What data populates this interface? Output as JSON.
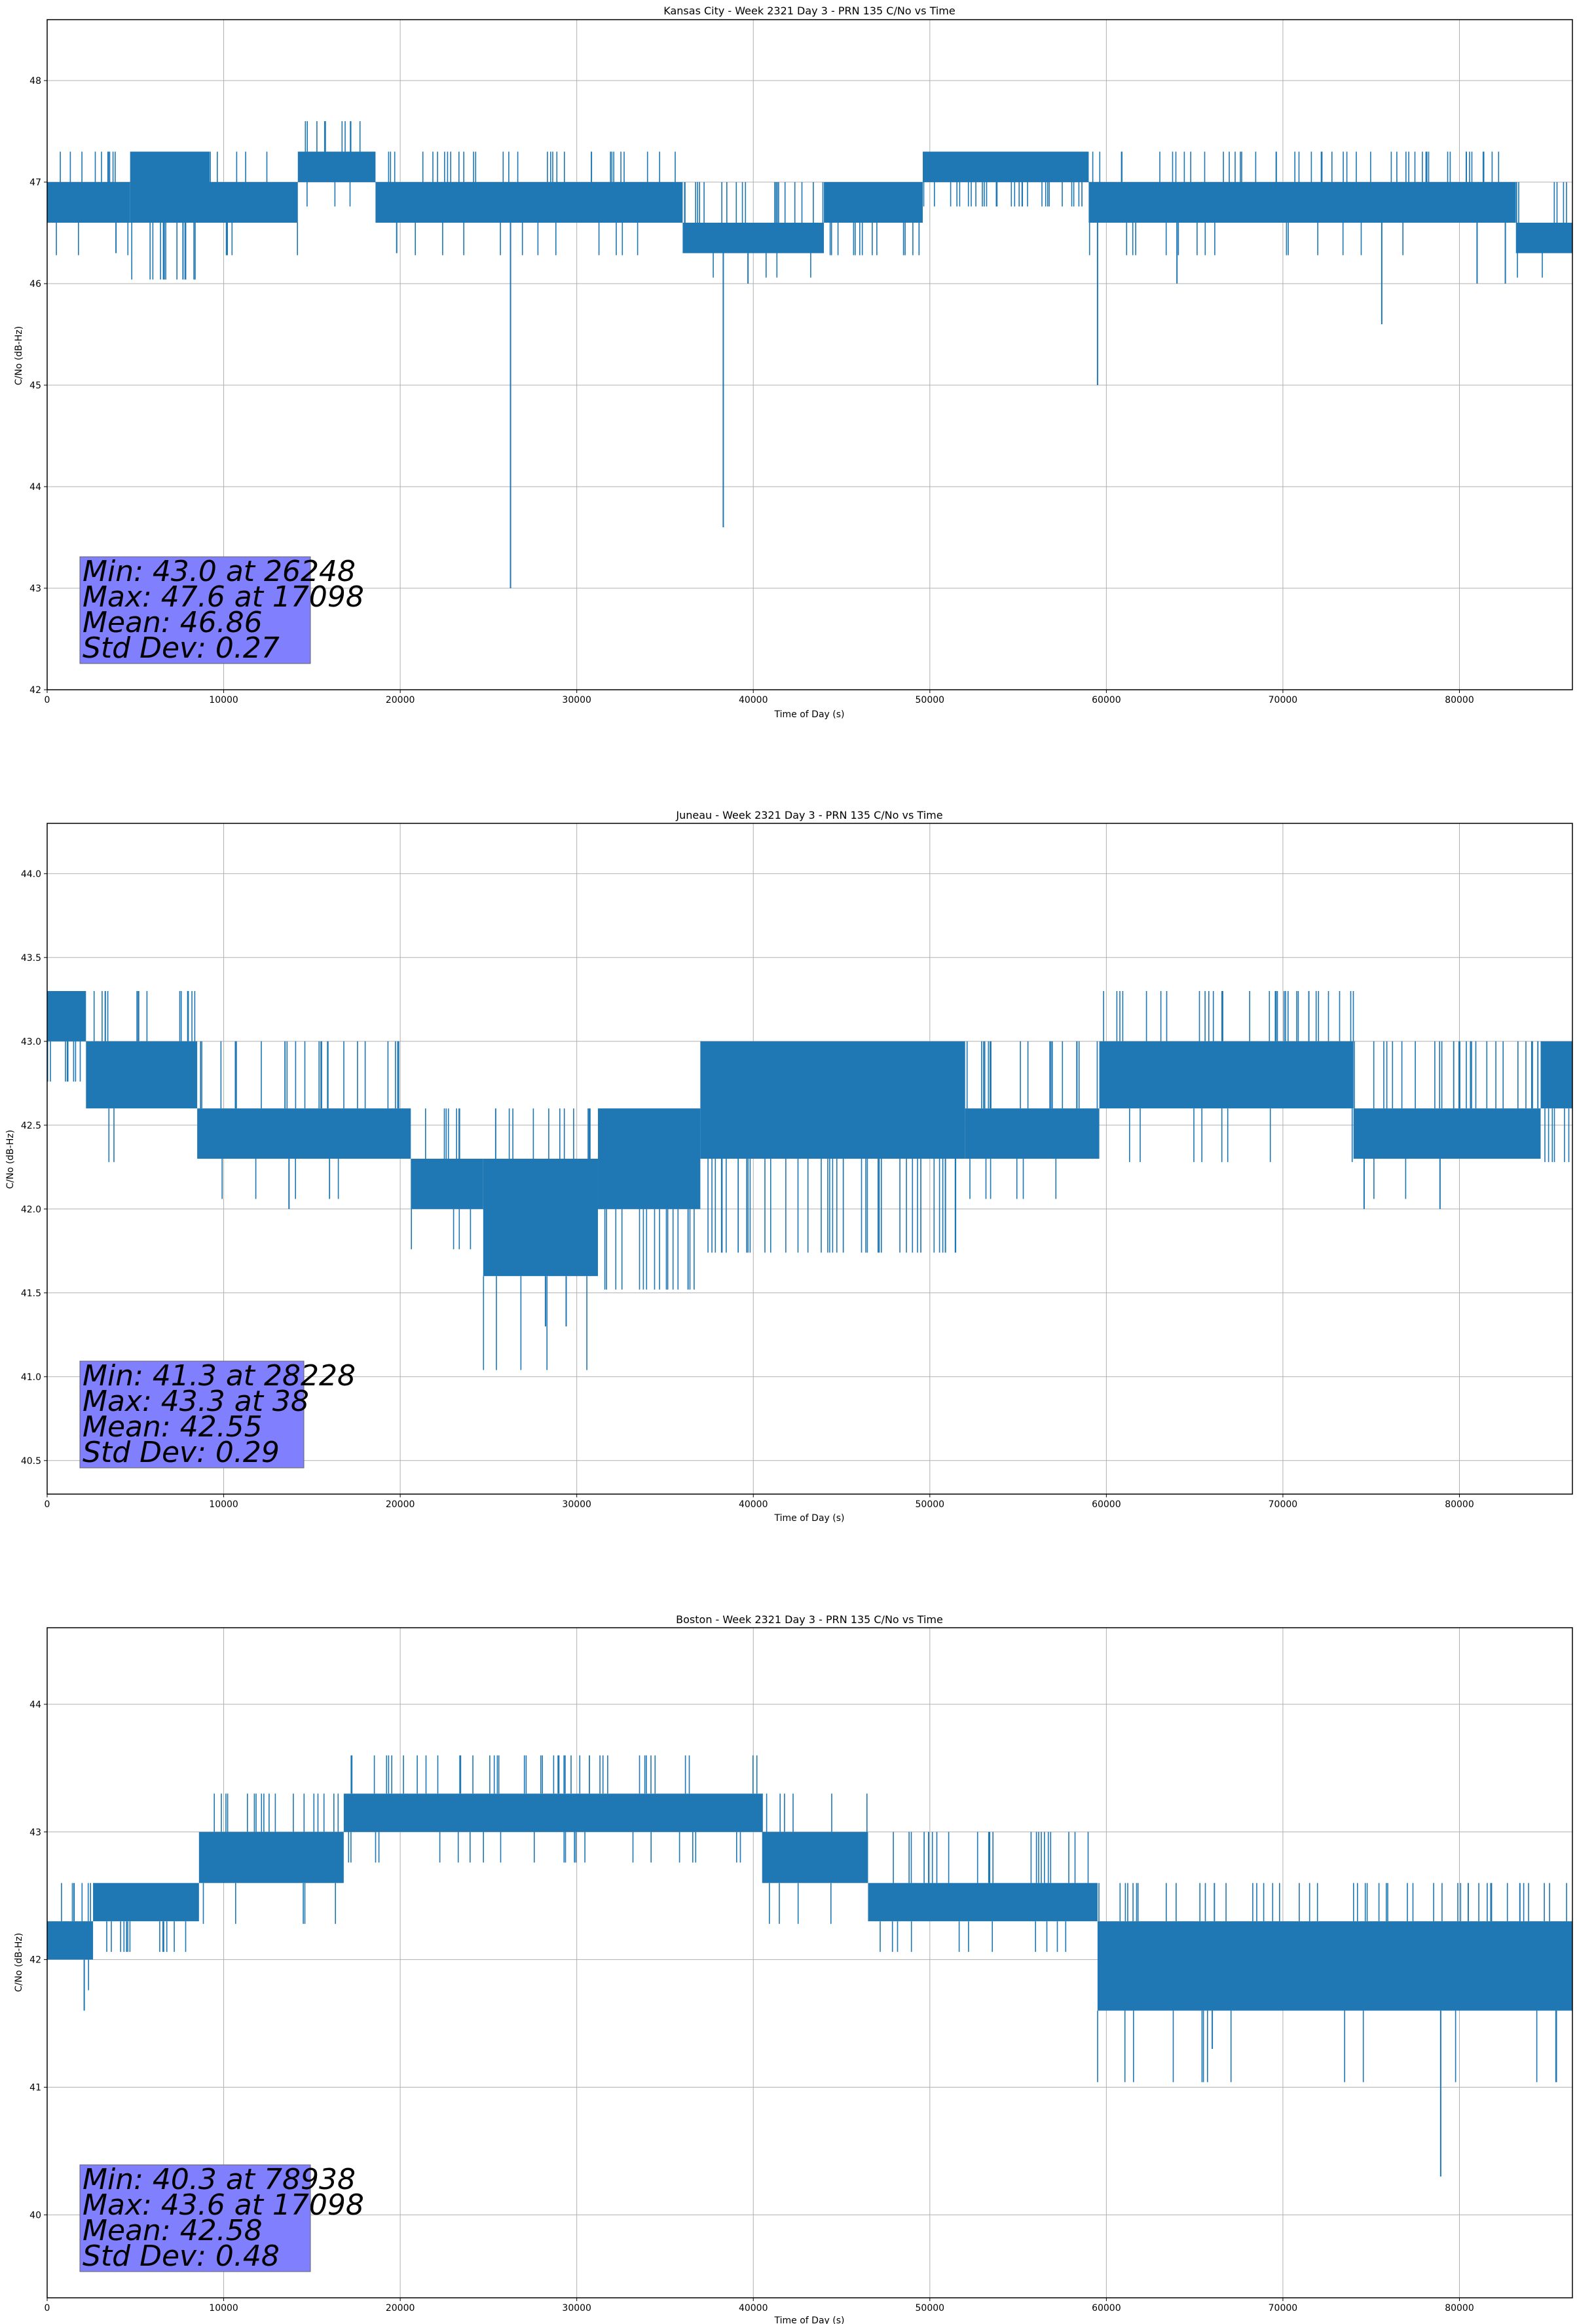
{
  "figure": {
    "background": "#ffffff",
    "line_color": "#1f77b4",
    "stats_box_color": "#8080ff"
  },
  "chart_data": [
    {
      "type": "line",
      "title": "Kansas City - Week 2321 Day 3 - PRN 135 C/No vs Time",
      "xlabel": "Time of Day (s)",
      "ylabel": "C/No (dB-Hz)",
      "xlim": [
        0,
        86400
      ],
      "ylim": [
        42,
        48.6
      ],
      "xticks": [
        0,
        10000,
        20000,
        30000,
        40000,
        50000,
        60000,
        70000,
        80000
      ],
      "xtick_labels": [
        "0",
        "10000",
        "20000",
        "30000",
        "40000",
        "50000",
        "60000",
        "70000",
        "80000"
      ],
      "yticks": [
        42,
        43,
        44,
        45,
        46,
        47,
        48
      ],
      "ytick_labels": [
        "42",
        "43",
        "44",
        "45",
        "46",
        "47",
        "48"
      ],
      "grid": true,
      "segments": [
        {
          "x0": 0,
          "x1": 4700,
          "lo": 46.6,
          "hi": 47.0,
          "spike_hi": 47.3
        },
        {
          "x0": 4700,
          "x1": 9200,
          "lo": 46.6,
          "hi": 47.3,
          "spike_hi": 47.3
        },
        {
          "x0": 9200,
          "x1": 14200,
          "lo": 46.6,
          "hi": 47.0,
          "spike_hi": 47.3
        },
        {
          "x0": 14200,
          "x1": 18600,
          "lo": 47.0,
          "hi": 47.3,
          "spike_hi": 47.6
        },
        {
          "x0": 18600,
          "x1": 36000,
          "lo": 46.6,
          "hi": 47.0,
          "spike_hi": 47.3
        },
        {
          "x0": 36000,
          "x1": 44000,
          "lo": 46.3,
          "hi": 46.6,
          "spike_hi": 47.0
        },
        {
          "x0": 44000,
          "x1": 49600,
          "lo": 46.6,
          "hi": 47.0,
          "spike_hi": 47.0
        },
        {
          "x0": 49600,
          "x1": 59000,
          "lo": 47.0,
          "hi": 47.3,
          "spike_hi": 47.3
        },
        {
          "x0": 59000,
          "x1": 83200,
          "lo": 46.6,
          "hi": 47.0,
          "spike_hi": 47.3
        },
        {
          "x0": 83200,
          "x1": 86400,
          "lo": 46.3,
          "hi": 46.6,
          "spike_hi": 47.0
        }
      ],
      "dips": [
        [
          3900,
          46.3
        ],
        [
          19800,
          46.3
        ],
        [
          26248,
          43.0
        ],
        [
          38300,
          43.6
        ],
        [
          39700,
          46.0
        ],
        [
          59500,
          45.0
        ],
        [
          64000,
          46.0
        ],
        [
          75600,
          45.6
        ],
        [
          81000,
          46.0
        ],
        [
          82600,
          46.0
        ]
      ],
      "stats": [
        "Min: 43.0 at 26248",
        "Max: 47.6 at 17098",
        "Mean: 46.86",
        "Std Dev: 0.27"
      ]
    },
    {
      "type": "line",
      "title": "Juneau - Week 2321 Day 3 - PRN 135 C/No vs Time",
      "xlabel": "Time of Day (s)",
      "ylabel": "C/No (dB-Hz)",
      "xlim": [
        0,
        86400
      ],
      "ylim": [
        40.3,
        44.3
      ],
      "xticks": [
        0,
        10000,
        20000,
        30000,
        40000,
        50000,
        60000,
        70000,
        80000
      ],
      "xtick_labels": [
        "0",
        "10000",
        "20000",
        "30000",
        "40000",
        "50000",
        "60000",
        "70000",
        "80000"
      ],
      "yticks": [
        40.5,
        41.0,
        41.5,
        42.0,
        42.5,
        43.0,
        43.5,
        44.0
      ],
      "ytick_labels": [
        "40.5",
        "41.0",
        "41.5",
        "42.0",
        "42.5",
        "43.0",
        "43.5",
        "44.0"
      ],
      "grid": true,
      "segments": [
        {
          "x0": 0,
          "x1": 2200,
          "lo": 43.0,
          "hi": 43.3,
          "spike_hi": 43.3
        },
        {
          "x0": 2200,
          "x1": 8500,
          "lo": 42.6,
          "hi": 43.0,
          "spike_hi": 43.3
        },
        {
          "x0": 8500,
          "x1": 20600,
          "lo": 42.3,
          "hi": 42.6,
          "spike_hi": 43.0
        },
        {
          "x0": 20600,
          "x1": 24700,
          "lo": 42.0,
          "hi": 42.3,
          "spike_hi": 42.6
        },
        {
          "x0": 24700,
          "x1": 31200,
          "lo": 41.6,
          "hi": 42.3,
          "spike_hi": 42.6
        },
        {
          "x0": 31200,
          "x1": 37000,
          "lo": 42.0,
          "hi": 42.6,
          "spike_hi": 42.6
        },
        {
          "x0": 37000,
          "x1": 52000,
          "lo": 42.3,
          "hi": 43.0,
          "spike_hi": 43.0
        },
        {
          "x0": 52000,
          "x1": 59600,
          "lo": 42.3,
          "hi": 42.6,
          "spike_hi": 43.0
        },
        {
          "x0": 59600,
          "x1": 74000,
          "lo": 42.6,
          "hi": 43.0,
          "spike_hi": 43.3
        },
        {
          "x0": 74000,
          "x1": 84600,
          "lo": 42.3,
          "hi": 42.6,
          "spike_hi": 43.0
        },
        {
          "x0": 84600,
          "x1": 86400,
          "lo": 42.6,
          "hi": 43.0,
          "spike_hi": 43.0
        }
      ],
      "dips": [
        [
          13700,
          42.0
        ],
        [
          28228,
          41.3
        ],
        [
          29400,
          41.3
        ],
        [
          74600,
          42.0
        ],
        [
          78900,
          42.0
        ]
      ],
      "stats": [
        "Min: 41.3 at 28228",
        "Max: 43.3 at 38",
        "Mean: 42.55",
        "Std Dev: 0.29"
      ]
    },
    {
      "type": "line",
      "title": "Boston - Week 2321 Day 3 - PRN 135 C/No vs Time",
      "xlabel": "Time of Day (s)",
      "ylabel": "C/No (dB-Hz)",
      "xlim": [
        0,
        86400
      ],
      "ylim": [
        39.35,
        44.6
      ],
      "xticks": [
        0,
        10000,
        20000,
        30000,
        40000,
        50000,
        60000,
        70000,
        80000
      ],
      "xtick_labels": [
        "0",
        "10000",
        "20000",
        "30000",
        "40000",
        "50000",
        "60000",
        "70000",
        "80000"
      ],
      "yticks": [
        40,
        41,
        42,
        43,
        44
      ],
      "ytick_labels": [
        "40",
        "41",
        "42",
        "43",
        "44"
      ],
      "grid": true,
      "segments": [
        {
          "x0": 0,
          "x1": 2600,
          "lo": 42.0,
          "hi": 42.3,
          "spike_hi": 42.6
        },
        {
          "x0": 2600,
          "x1": 8600,
          "lo": 42.3,
          "hi": 42.6,
          "spike_hi": 42.6
        },
        {
          "x0": 8600,
          "x1": 16800,
          "lo": 42.6,
          "hi": 43.0,
          "spike_hi": 43.3
        },
        {
          "x0": 16800,
          "x1": 40500,
          "lo": 43.0,
          "hi": 43.3,
          "spike_hi": 43.6
        },
        {
          "x0": 40500,
          "x1": 46500,
          "lo": 42.6,
          "hi": 43.0,
          "spike_hi": 43.3
        },
        {
          "x0": 46500,
          "x1": 59500,
          "lo": 42.3,
          "hi": 42.6,
          "spike_hi": 43.0
        },
        {
          "x0": 59500,
          "x1": 86400,
          "lo": 41.6,
          "hi": 42.3,
          "spike_hi": 42.6
        }
      ],
      "dips": [
        [
          2100,
          41.6
        ],
        [
          66000,
          41.3
        ],
        [
          78938,
          40.3
        ]
      ],
      "stats": [
        "Min: 40.3 at 78938",
        "Max: 43.6 at 17098",
        "Mean: 42.58",
        "Std Dev: 0.48"
      ]
    }
  ]
}
